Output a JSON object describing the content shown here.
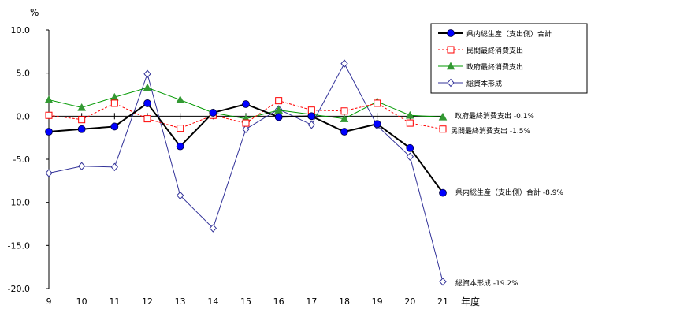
{
  "chart_data": {
    "type": "line",
    "y_unit": "%",
    "x_unit": "年度",
    "categories": [
      "9",
      "10",
      "11",
      "12",
      "13",
      "14",
      "15",
      "16",
      "17",
      "18",
      "19",
      "20",
      "21"
    ],
    "ylim": [
      -20,
      10
    ],
    "yticks": [
      "10.0",
      "5.0",
      "0.0",
      "-5.0",
      "-10.0",
      "-15.0",
      "-20.0"
    ],
    "ytick_values": [
      10,
      5,
      0,
      -5,
      -10,
      -15,
      -20
    ],
    "grid": false,
    "legend_position": "top-right",
    "series": [
      {
        "name": "県内総生産（支出側）合計",
        "color": "#000000",
        "marker": "circle-filled",
        "marker_color": "#0000ff",
        "line_style": "solid",
        "line_width": 2,
        "values": [
          -1.8,
          -1.5,
          -1.2,
          1.5,
          -3.5,
          0.4,
          1.4,
          -0.1,
          0.0,
          -1.8,
          -0.9,
          -3.7,
          -8.9
        ],
        "end_label": "県内総生産（支出側）合計 -8.9%"
      },
      {
        "name": "民間最終消費支出",
        "color": "#ff0000",
        "marker": "square-open",
        "marker_color": "#ff0000",
        "line_style": "dashed",
        "line_width": 1,
        "values": [
          0.1,
          -0.4,
          1.5,
          -0.3,
          -1.4,
          0.1,
          -0.8,
          1.8,
          0.7,
          0.6,
          1.5,
          -0.8,
          -1.5
        ],
        "end_label": "民間最終消費支出 -1.5%"
      },
      {
        "name": "政府最終消費支出",
        "color": "#009900",
        "marker": "triangle-filled",
        "marker_color": "#339933",
        "line_style": "solid",
        "line_width": 1,
        "values": [
          1.9,
          1.0,
          2.2,
          3.3,
          1.9,
          0.4,
          -0.3,
          0.7,
          0.2,
          -0.3,
          1.7,
          0.1,
          -0.1
        ],
        "end_label": "政府最終消費支出 -0.1%"
      },
      {
        "name": "総資本形成",
        "color": "#333399",
        "marker": "diamond-open",
        "marker_color": "#333399",
        "line_style": "solid",
        "line_width": 1,
        "values": [
          -6.6,
          -5.8,
          -5.9,
          4.9,
          -9.2,
          -13.0,
          -1.5,
          0.8,
          -1.0,
          6.1,
          -1.1,
          -4.7,
          -19.2
        ],
        "end_label": "総資本形成 -19.2%"
      }
    ]
  }
}
